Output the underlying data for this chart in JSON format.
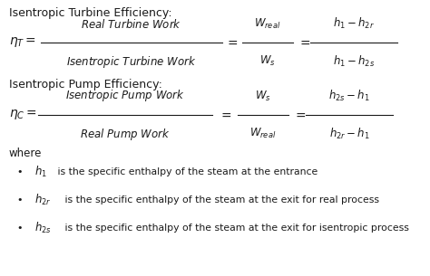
{
  "background_color": "#ffffff",
  "text_color": "#1a1a1a",
  "fig_width": 4.74,
  "fig_height": 3.05,
  "dpi": 100,
  "heading1": "Isentropic Turbine Efficiency:",
  "heading2": "Isentropic Pump Efficiency:",
  "where_text": "where",
  "turbine_lhs": "$\\eta_T =$",
  "turbine_frac1_num": "Real Turbine Work",
  "turbine_frac1_den": "Isentropic Turbine Work",
  "turbine_frac2": "$\\dfrac{W_{real}}{W_s}$",
  "turbine_frac3": "$\\dfrac{h_1 - h_{2r}}{h_1 - h_{2s}}$",
  "pump_lhs": "$\\eta_C =$",
  "pump_frac1_num": "Isentropic Pump Work",
  "pump_frac1_den": "Real Pump Work",
  "pump_frac2": "$\\dfrac{W_s}{W_{real}}$",
  "pump_frac3": "$\\dfrac{h_{2s} - h_1}{h_{2r} - h_1}$",
  "eq_sign": "$=$",
  "bullet1_label": "$h_1$",
  "bullet1_text": " is the specific enthalpy of the steam at the entrance",
  "bullet2_label": "$h_{2r}$",
  "bullet2_text": " is the specific enthalpy of the steam at the exit for real process",
  "bullet3_label": "$h_{2s}$",
  "bullet3_text": " is the specific enthalpy of the steam at the exit for isentropic process"
}
